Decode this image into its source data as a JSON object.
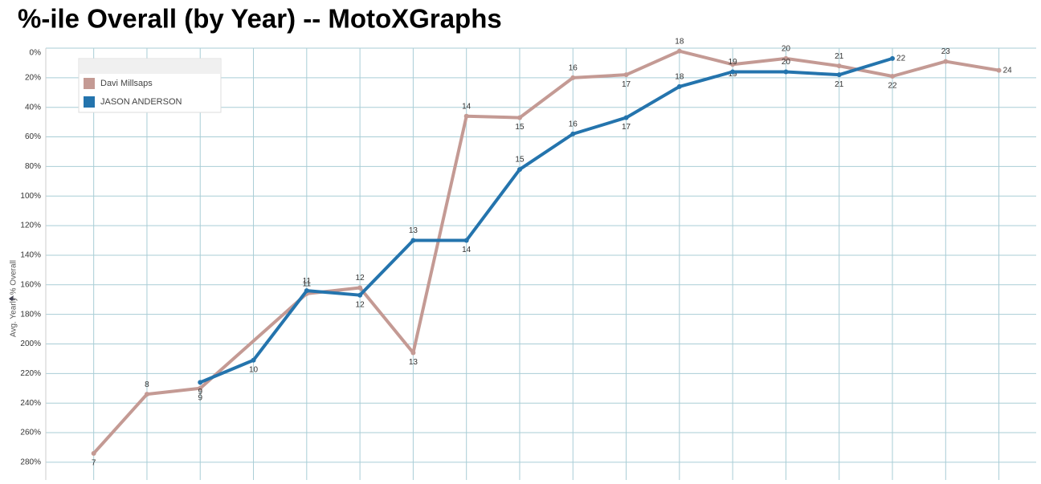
{
  "chart_data": {
    "type": "line",
    "title": "%-ile Overall (by Year) -- MotoXGraphs",
    "y_label": "Avg. Yearly % Overall",
    "y_reversed": true,
    "ylim": [
      0,
      292
    ],
    "yticks": [
      {
        "value": 0,
        "label": "0%"
      },
      {
        "value": 20,
        "label": "20%"
      },
      {
        "value": 40,
        "label": "40%"
      },
      {
        "value": 60,
        "label": "60%"
      },
      {
        "value": 80,
        "label": "80%"
      },
      {
        "value": 100,
        "label": "100%"
      },
      {
        "value": 120,
        "label": "120%"
      },
      {
        "value": 140,
        "label": "140%"
      },
      {
        "value": 160,
        "label": "160%"
      },
      {
        "value": 180,
        "label": "180%"
      },
      {
        "value": 200,
        "label": "200%"
      },
      {
        "value": 220,
        "label": "220%"
      },
      {
        "value": 240,
        "label": "240%"
      },
      {
        "value": 260,
        "label": "260%"
      },
      {
        "value": 280,
        "label": "280%"
      }
    ],
    "xlim": [
      6.1,
      24.7
    ],
    "xticks": [
      7,
      8,
      9,
      10,
      11,
      12,
      13,
      14,
      15,
      16,
      17,
      18,
      19,
      20,
      21,
      22,
      23,
      24
    ],
    "grid": true,
    "legend": "top-left",
    "series": [
      {
        "name": "Davi Millsaps",
        "color": "#c49a94",
        "x": [
          7,
          8,
          9,
          11,
          12,
          13,
          14,
          15,
          16,
          17,
          18,
          19,
          20,
          21,
          22,
          23,
          24
        ],
        "values": [
          274,
          234,
          230,
          166,
          162,
          206,
          46,
          47,
          20,
          18,
          2,
          11,
          7,
          12,
          19,
          9,
          15
        ]
      },
      {
        "name": "JASON ANDERSON",
        "color": "#2474ad",
        "x": [
          9,
          10,
          11,
          12,
          13,
          14,
          15,
          16,
          17,
          18,
          19,
          20,
          21,
          22
        ],
        "values": [
          226,
          211,
          164,
          167,
          130,
          130,
          82,
          58,
          47,
          26,
          16,
          16,
          18,
          7
        ]
      }
    ]
  }
}
